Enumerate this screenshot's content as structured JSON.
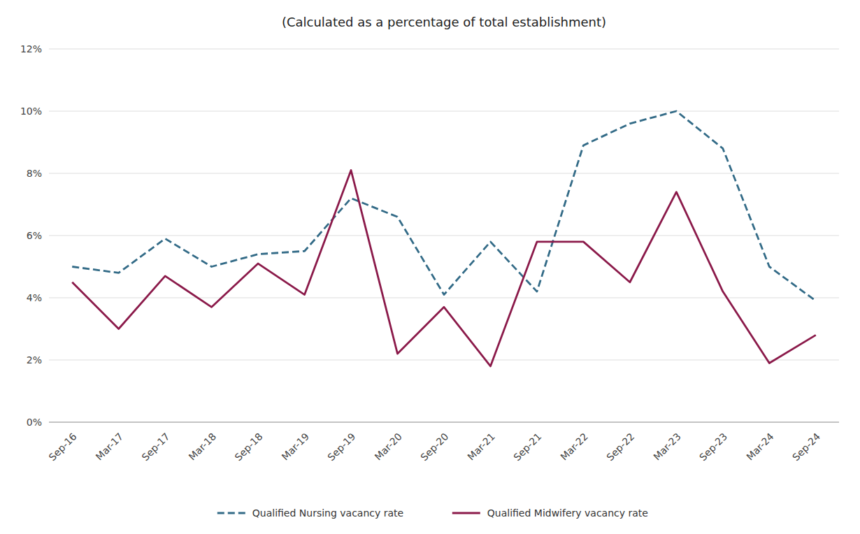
{
  "chart_data": {
    "type": "line",
    "title": "(Calculated as a percentage of total establishment)",
    "categories": [
      "Sep-16",
      "Mar-17",
      "Sep-17",
      "Mar-18",
      "Sep-18",
      "Mar-19",
      "Sep-19",
      "Mar-20",
      "Sep-20",
      "Mar-21",
      "Sep-21",
      "Mar-22",
      "Sep-22",
      "Mar-23",
      "Sep-23",
      "Mar-24",
      "Sep-24"
    ],
    "series": [
      {
        "name": "Qualified Nursing vacancy rate",
        "color": "#336B87",
        "line_style": "dashed",
        "values": [
          5.0,
          4.8,
          5.9,
          5.0,
          5.4,
          5.5,
          7.2,
          6.6,
          4.1,
          5.8,
          4.2,
          8.9,
          9.6,
          10.0,
          8.8,
          5.0,
          3.9
        ]
      },
      {
        "name": "Qualified Midwifery vacancy rate",
        "color": "#8B1A4A",
        "line_style": "solid",
        "values": [
          4.5,
          3.0,
          4.7,
          3.7,
          5.1,
          4.1,
          8.1,
          2.2,
          3.7,
          1.8,
          5.8,
          5.8,
          4.5,
          7.4,
          4.2,
          1.9,
          2.8
        ]
      }
    ],
    "ylim": [
      0,
      12
    ],
    "yticks": [
      {
        "value": 0,
        "label": "0%"
      },
      {
        "value": 2,
        "label": "2%"
      },
      {
        "value": 4,
        "label": "4%"
      },
      {
        "value": 6,
        "label": "6%"
      },
      {
        "value": 8,
        "label": "8%"
      },
      {
        "value": 10,
        "label": "10%"
      },
      {
        "value": 12,
        "label": "12%"
      }
    ],
    "grid": true,
    "legend": "bottom"
  }
}
